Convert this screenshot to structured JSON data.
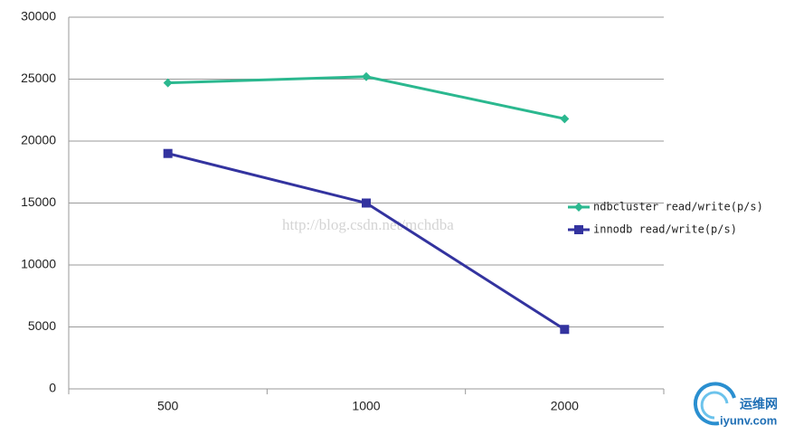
{
  "chart_data": {
    "type": "line",
    "categories": [
      "500",
      "1000",
      "2000"
    ],
    "series": [
      {
        "name": "ndbcluster read/write(p/s)",
        "color": "#2bb88f",
        "marker": "diamond",
        "values": [
          24700,
          25200,
          21800
        ]
      },
      {
        "name": "innodb read/write(p/s)",
        "color": "#33339f",
        "marker": "square",
        "values": [
          19000,
          15000,
          4800
        ]
      }
    ],
    "ylim": [
      0,
      30000
    ],
    "yticks": [
      0,
      5000,
      10000,
      15000,
      20000,
      25000,
      30000
    ],
    "grid": true,
    "legend": "right",
    "watermark": "http://blog.csdn.net/mchdba",
    "logo": {
      "name": "运维网",
      "url": "iyunv.com"
    }
  }
}
